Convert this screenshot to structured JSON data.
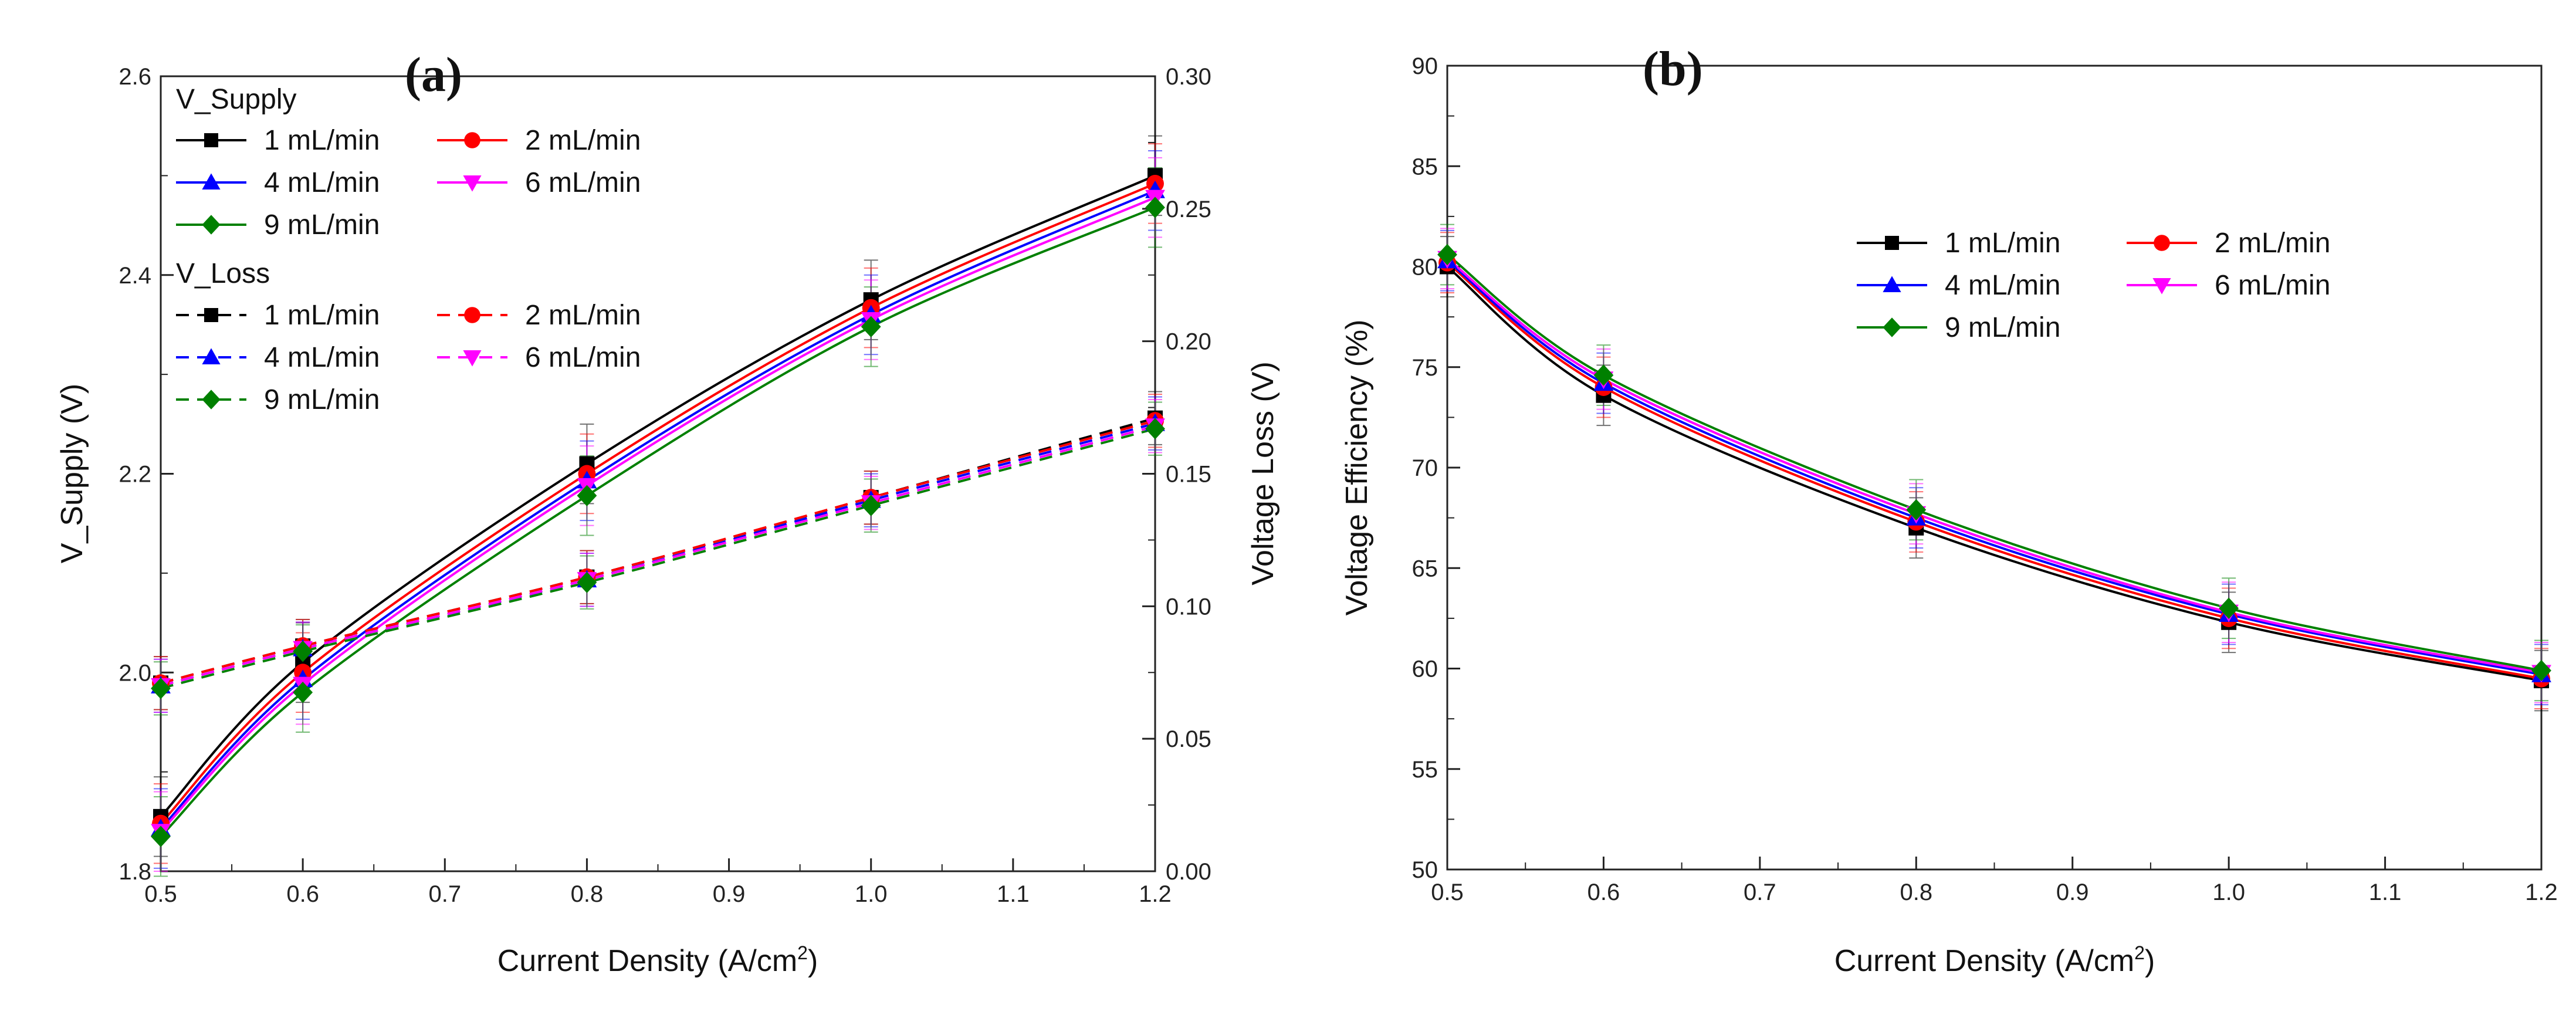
{
  "colors": {
    "1": "#000000",
    "2": "#ff0000",
    "4": "#0000ff",
    "6": "#ff00ff",
    "9": "#008000"
  },
  "chart_data": [
    {
      "type": "line",
      "panel_label": "(a)",
      "xlabel_main": "Current Density (A/cm",
      "xlabel_sup": "2",
      "xlabel_tail": ")",
      "ylabel": "V_Supply (V)",
      "y2label": "Voltage Loss (V)",
      "xlim": [
        0.5,
        1.2
      ],
      "ylim": [
        1.8,
        2.6
      ],
      "y2lim": [
        0.0,
        0.3
      ],
      "xticks": [
        "0.5",
        "0.6",
        "0.7",
        "0.8",
        "0.9",
        "1.0",
        "1.1",
        "1.2"
      ],
      "yticks": [
        "1.8",
        "2.0",
        "2.2",
        "2.4",
        "2.6"
      ],
      "y2ticks": [
        "0.00",
        "0.05",
        "0.10",
        "0.15",
        "0.20",
        "0.25",
        "0.30"
      ],
      "legend_group1_title": "V_Supply",
      "legend_group2_title": "V_Loss",
      "x": [
        0.5,
        0.6,
        0.8,
        1.0,
        1.2
      ],
      "series": [
        {
          "name": "1 mL/min",
          "group": "V_Supply",
          "axis": "left",
          "color_key": "1",
          "marker": "square",
          "dashed": false,
          "values": [
            1.855,
            2.01,
            2.21,
            2.375,
            2.5
          ],
          "err": 0.04
        },
        {
          "name": "2 mL/min",
          "group": "V_Supply",
          "axis": "left",
          "color_key": "2",
          "marker": "circle",
          "dashed": false,
          "values": [
            1.848,
            2.0,
            2.2,
            2.367,
            2.492
          ],
          "err": 0.04
        },
        {
          "name": "4 mL/min",
          "group": "V_Supply",
          "axis": "left",
          "color_key": "4",
          "marker": "triangle-up",
          "dashed": false,
          "values": [
            1.843,
            1.993,
            2.193,
            2.36,
            2.485
          ],
          "err": 0.04
        },
        {
          "name": "6 mL/min",
          "group": "V_Supply",
          "axis": "left",
          "color_key": "6",
          "marker": "triangle-down",
          "dashed": false,
          "values": [
            1.84,
            1.988,
            2.188,
            2.355,
            2.478
          ],
          "err": 0.04
        },
        {
          "name": "9 mL/min",
          "group": "V_Supply",
          "axis": "left",
          "color_key": "9",
          "marker": "diamond",
          "dashed": false,
          "values": [
            1.835,
            1.98,
            2.178,
            2.348,
            2.468
          ],
          "err": 0.04
        },
        {
          "name": "1 mL/min",
          "group": "V_Loss",
          "axis": "right",
          "color_key": "1",
          "marker": "square",
          "dashed": true,
          "values": [
            0.071,
            0.085,
            0.111,
            0.141,
            0.171
          ],
          "err": 0.01
        },
        {
          "name": "2 mL/min",
          "group": "V_Loss",
          "axis": "right",
          "color_key": "2",
          "marker": "circle",
          "dashed": true,
          "values": [
            0.071,
            0.085,
            0.111,
            0.141,
            0.17
          ],
          "err": 0.01
        },
        {
          "name": "4 mL/min",
          "group": "V_Loss",
          "axis": "right",
          "color_key": "4",
          "marker": "triangle-up",
          "dashed": true,
          "values": [
            0.07,
            0.084,
            0.11,
            0.14,
            0.169
          ],
          "err": 0.01
        },
        {
          "name": "6 mL/min",
          "group": "V_Loss",
          "axis": "right",
          "color_key": "6",
          "marker": "triangle-down",
          "dashed": true,
          "values": [
            0.07,
            0.084,
            0.11,
            0.139,
            0.168
          ],
          "err": 0.01
        },
        {
          "name": "9 mL/min",
          "group": "V_Loss",
          "axis": "right",
          "color_key": "9",
          "marker": "diamond",
          "dashed": true,
          "values": [
            0.069,
            0.083,
            0.109,
            0.138,
            0.167
          ],
          "err": 0.01
        }
      ]
    },
    {
      "type": "line",
      "panel_label": "(b)",
      "xlabel_main": "Current Density (A/cm",
      "xlabel_sup": "2",
      "xlabel_tail": ")",
      "ylabel": "Voltage Efficiency (%)",
      "xlim": [
        0.5,
        1.2
      ],
      "ylim": [
        50,
        90
      ],
      "xticks": [
        "0.5",
        "0.6",
        "0.7",
        "0.8",
        "0.9",
        "1.0",
        "1.1",
        "1.2"
      ],
      "yticks": [
        "50",
        "55",
        "60",
        "65",
        "70",
        "75",
        "80",
        "85",
        "90"
      ],
      "x": [
        0.5,
        0.6,
        0.8,
        1.0,
        1.2
      ],
      "series": [
        {
          "name": "1 mL/min",
          "color_key": "1",
          "marker": "square",
          "dashed": false,
          "values": [
            80.0,
            73.6,
            67.0,
            62.3,
            59.4
          ],
          "err": 1.5
        },
        {
          "name": "2 mL/min",
          "color_key": "2",
          "marker": "circle",
          "dashed": false,
          "values": [
            80.2,
            74.0,
            67.3,
            62.5,
            59.5
          ],
          "err": 1.5
        },
        {
          "name": "4 mL/min",
          "color_key": "4",
          "marker": "triangle-up",
          "dashed": false,
          "values": [
            80.3,
            74.2,
            67.5,
            62.7,
            59.7
          ],
          "err": 1.5
        },
        {
          "name": "6 mL/min",
          "color_key": "6",
          "marker": "triangle-down",
          "dashed": false,
          "values": [
            80.4,
            74.4,
            67.7,
            62.8,
            59.8
          ],
          "err": 1.5
        },
        {
          "name": "9 mL/min",
          "color_key": "9",
          "marker": "diamond",
          "dashed": false,
          "values": [
            80.6,
            74.6,
            67.9,
            63.0,
            59.9
          ],
          "err": 1.5
        }
      ]
    }
  ]
}
